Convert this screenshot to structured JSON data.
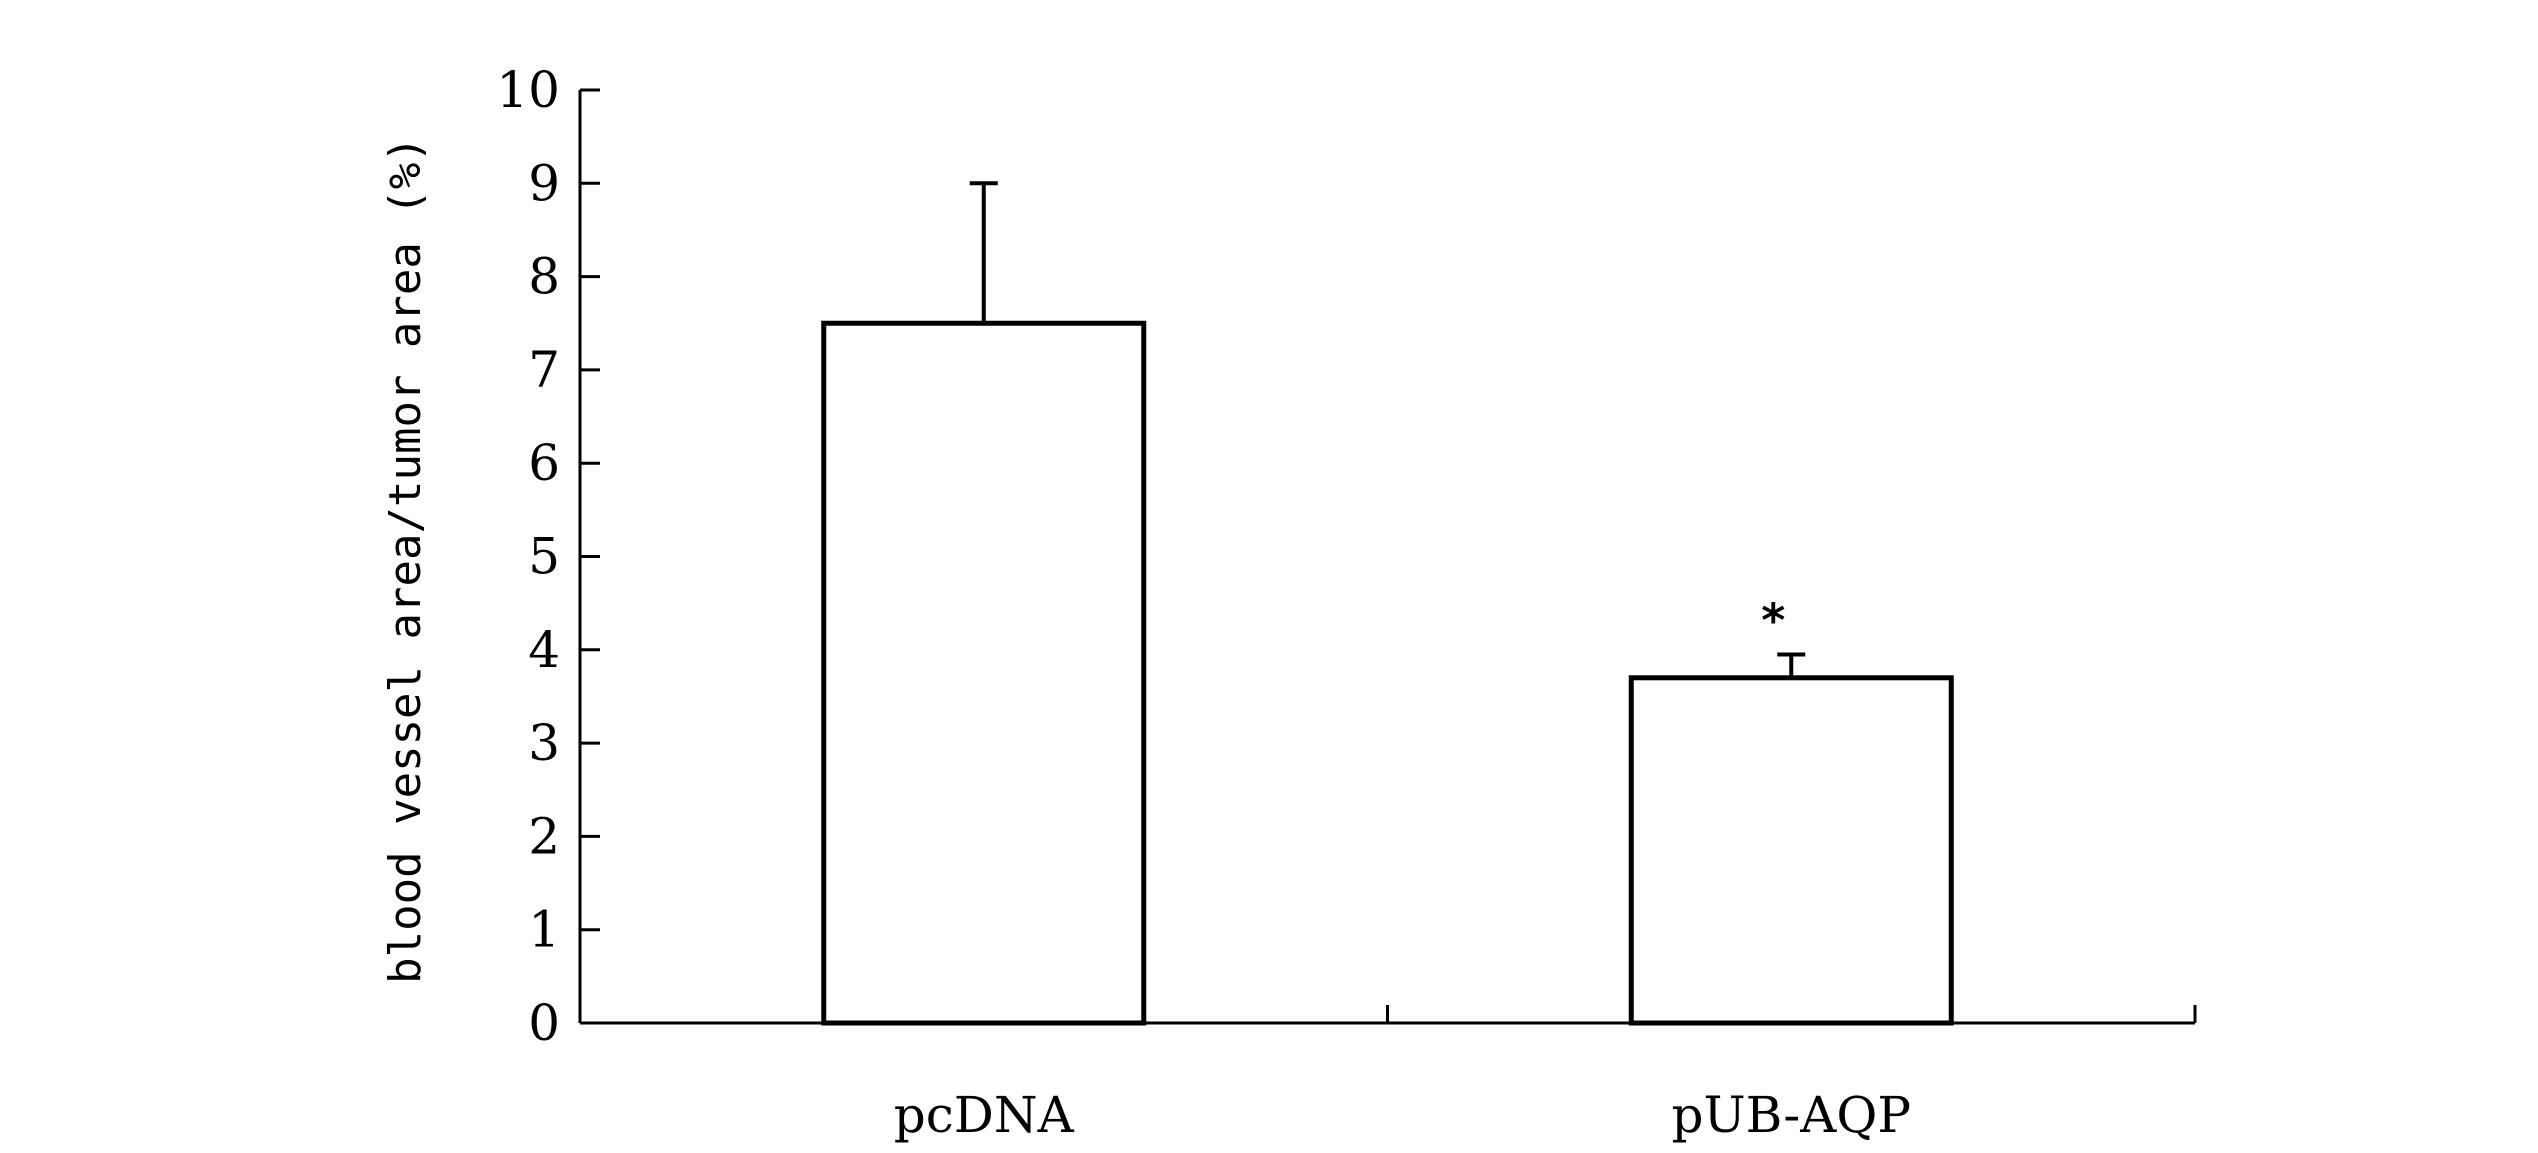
{
  "chart_data": {
    "type": "bar",
    "title": "",
    "xlabel": "",
    "ylabel": "blood vessel area/tumor area (%)",
    "categories": [
      "pcDNA",
      "pUB-AQP"
    ],
    "values": [
      7.5,
      3.7
    ],
    "error_plus": [
      1.5,
      0.25
    ],
    "annotations": [
      "",
      "*"
    ],
    "ylim": [
      0,
      10
    ],
    "yticks": [
      "0",
      "1",
      "2",
      "3",
      "4",
      "5",
      "6",
      "7",
      "8",
      "9",
      "10"
    ],
    "grid": false,
    "bar_fill": "#ffffff",
    "bar_stroke": "#000000"
  }
}
